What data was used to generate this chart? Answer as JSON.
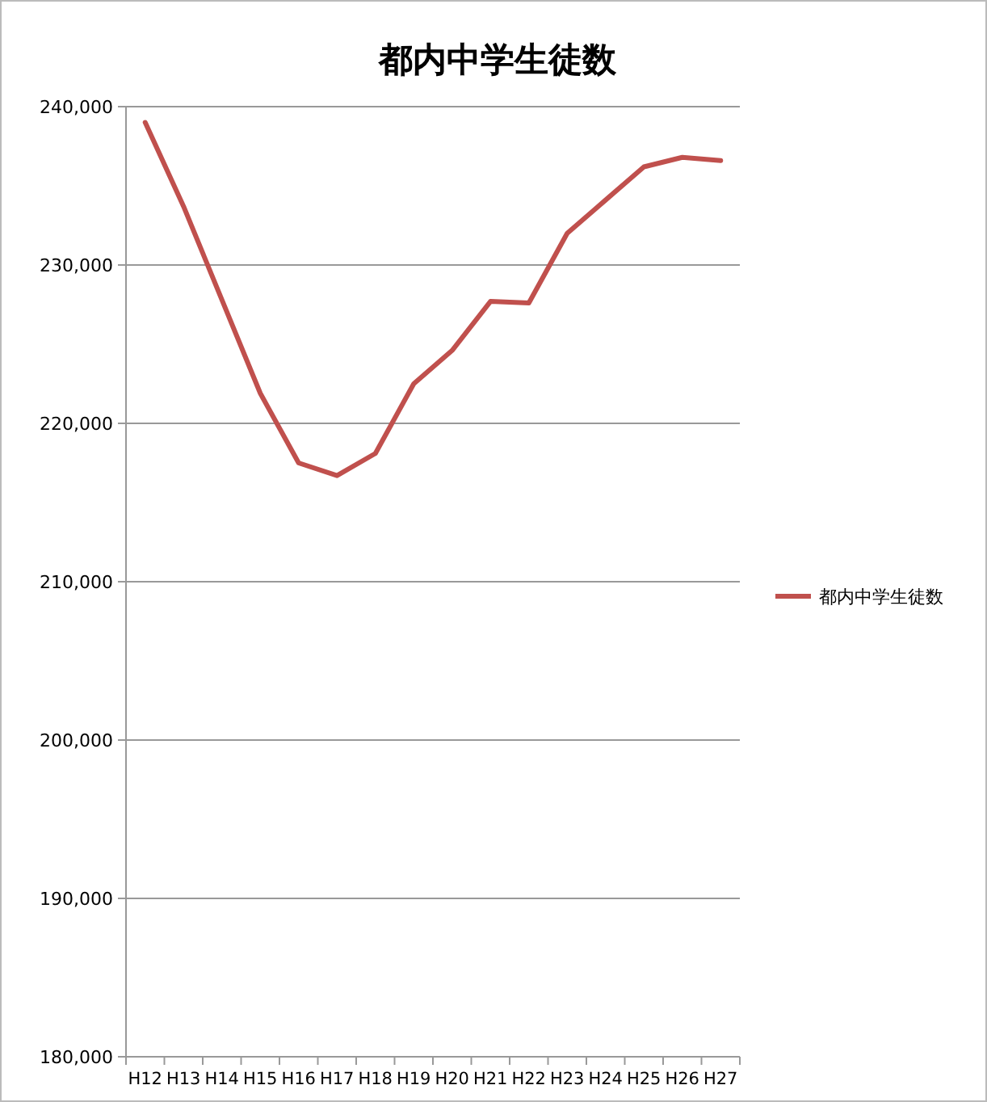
{
  "chart_data": {
    "type": "line",
    "title": "都内中学生徒数",
    "categories": [
      "H12",
      "H13",
      "H14",
      "H15",
      "H16",
      "H17",
      "H18",
      "H19",
      "H20",
      "H21",
      "H22",
      "H23",
      "H24",
      "H25",
      "H26",
      "H27"
    ],
    "series": [
      {
        "name": "都内中学生徒数",
        "color": "#c0504d",
        "values": [
          239000,
          233700,
          227800,
          221900,
          217500,
          216700,
          218100,
          222500,
          224600,
          227700,
          227600,
          232000,
          234100,
          236200,
          236800,
          236600
        ]
      }
    ],
    "ylim": [
      180000,
      240000
    ],
    "yticks": [
      {
        "value": 180000,
        "label": "180,000"
      },
      {
        "value": 190000,
        "label": "190,000"
      },
      {
        "value": 200000,
        "label": "200,000"
      },
      {
        "value": 210000,
        "label": "210,000"
      },
      {
        "value": 220000,
        "label": "220,000"
      },
      {
        "value": 230000,
        "label": "230,000"
      },
      {
        "value": 240000,
        "label": "240,000"
      }
    ],
    "grid": "y",
    "legend": "right",
    "marker": "none",
    "line_style": "solid"
  }
}
